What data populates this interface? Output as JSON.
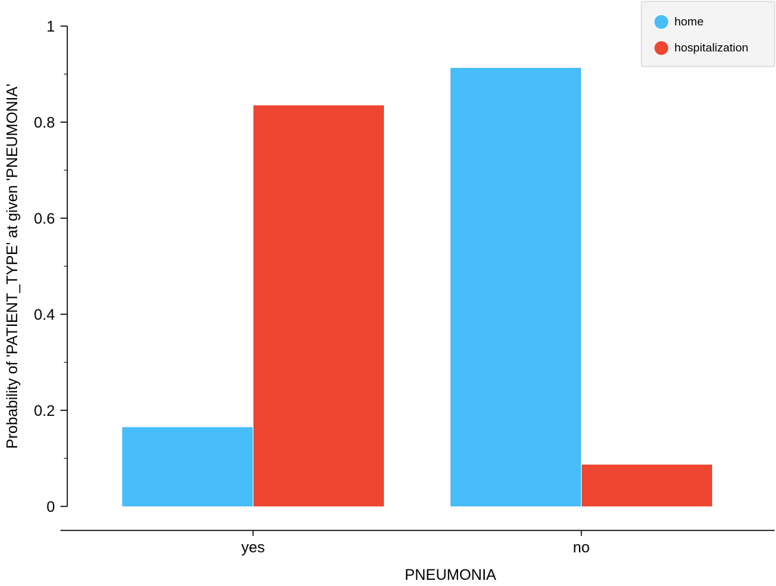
{
  "chart_data": {
    "type": "bar",
    "categories": [
      "yes",
      "no"
    ],
    "series": [
      {
        "name": "home",
        "color": "#47bdfa",
        "values": [
          0.165,
          0.913
        ]
      },
      {
        "name": "hospitalization",
        "color": "#ee4630",
        "values": [
          0.835,
          0.087
        ]
      }
    ],
    "xlabel": "PNEUMONIA",
    "ylabel": "Probability of 'PATIENT_TYPE' at given 'PNEUMONIA'",
    "ylim": [
      0,
      1
    ],
    "yticks": [
      0,
      0.2,
      0.4,
      0.6,
      0.8,
      1
    ],
    "ytick_labels": [
      "0",
      "0.2",
      "0.4",
      "0.6",
      "0.8",
      "1"
    ],
    "legend_position": "top-right",
    "grid": false
  }
}
